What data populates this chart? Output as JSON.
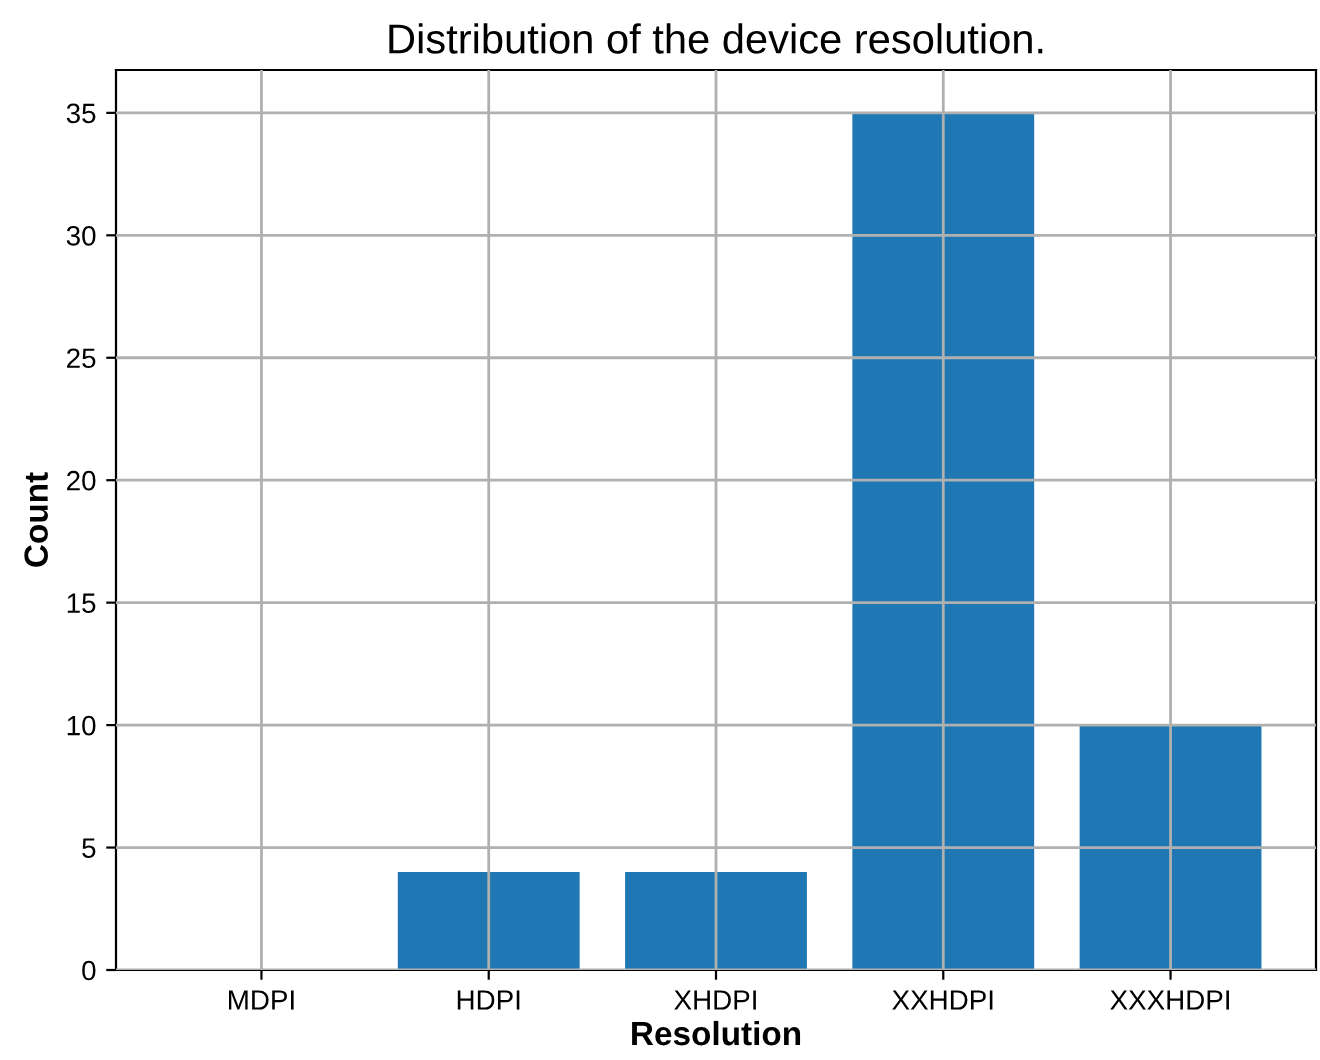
{
  "chart_data": {
    "type": "bar",
    "title": "Distribution of the device resolution.",
    "xlabel": "Resolution",
    "ylabel": "Count",
    "categories": [
      "MDPI",
      "HDPI",
      "XHDPI",
      "XXHDPI",
      "XXXHDPI"
    ],
    "values": [
      0,
      4,
      4,
      35,
      10
    ],
    "color": "#1f77b4",
    "ylim": [
      0,
      36.75
    ],
    "yticks": [
      0,
      5,
      10,
      15,
      20,
      25,
      30,
      35
    ],
    "grid": true
  }
}
